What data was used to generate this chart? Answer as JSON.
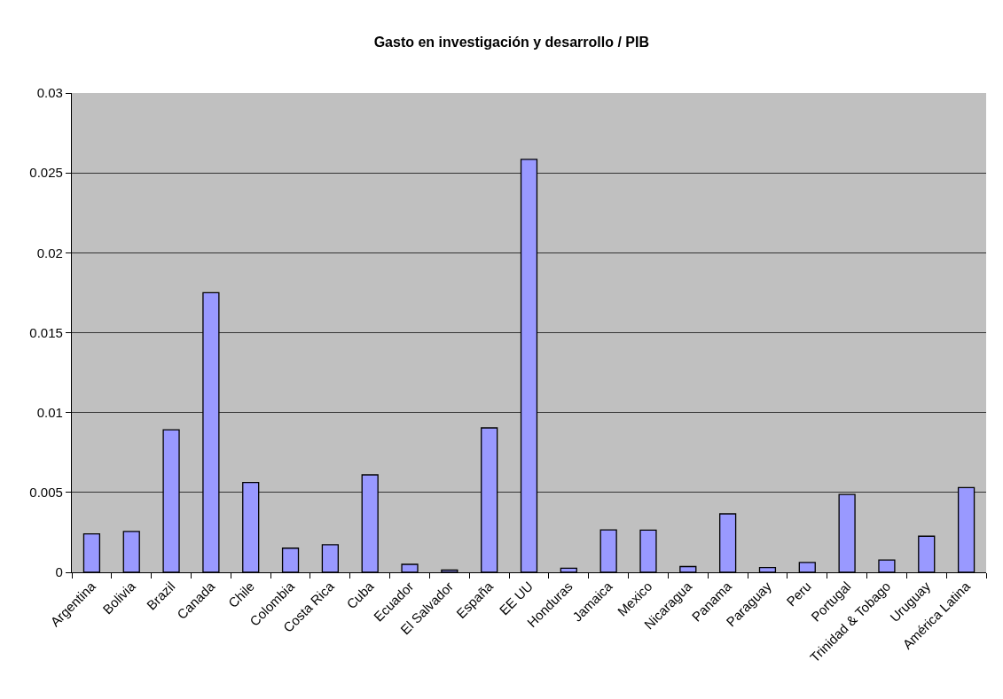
{
  "chart_data": {
    "type": "bar",
    "title": "Gasto en investigación y desarrollo / PIB",
    "categories": [
      "Argentina",
      "Bolivia",
      "Brazil",
      "Canada",
      "Chile",
      "Colombia",
      "Costa Rica",
      "Cuba",
      "Ecuador",
      "El Salvador",
      "España",
      "EE UU",
      "Honduras",
      "Jamaica",
      "Mexico",
      "Nicaragua",
      "Panama",
      "Paraguay",
      "Peru",
      "Portugal",
      "Trinidad & Tobago",
      "Uruguay",
      "América Latina"
    ],
    "values": [
      0.0024,
      0.00256,
      0.00892,
      0.0175,
      0.00562,
      0.00151,
      0.00173,
      0.0061,
      0.0005,
      0.00014,
      0.00904,
      0.02585,
      0.00026,
      0.00266,
      0.00264,
      0.00036,
      0.00366,
      0.0003,
      0.00062,
      0.00487,
      0.00077,
      0.00226,
      0.0053
    ],
    "color": "#9999ff",
    "ylim": [
      0,
      0.03
    ],
    "yticks": [
      0,
      0.005,
      0.01,
      0.015,
      0.02,
      0.025,
      0.03
    ],
    "grid": "y"
  }
}
